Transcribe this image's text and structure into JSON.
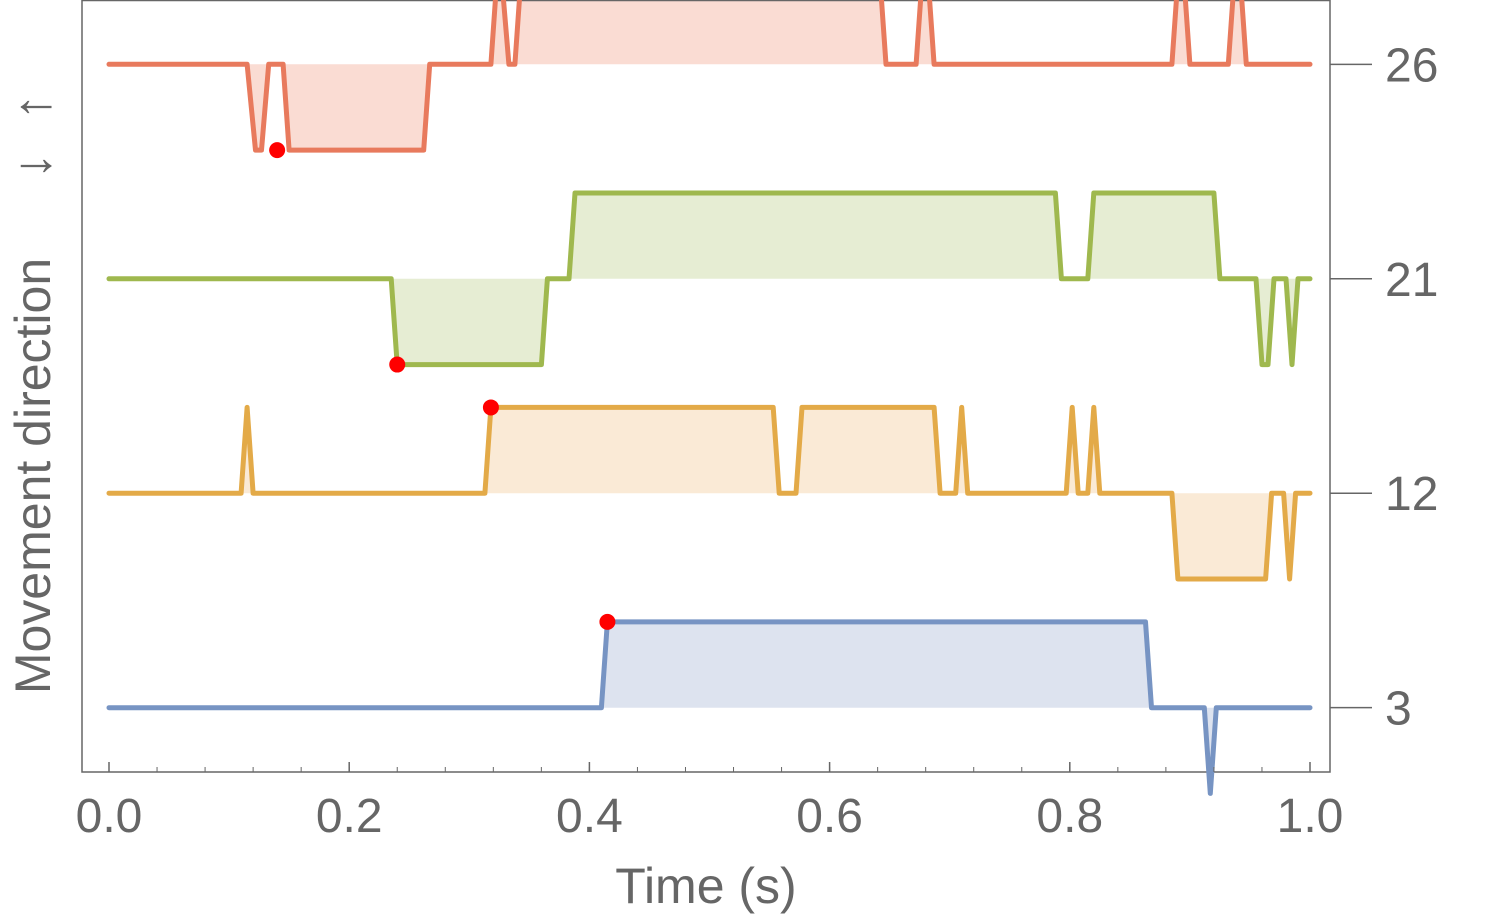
{
  "chart_data": {
    "type": "line",
    "xlabel": "Time (s)",
    "ylabel": "Movement direction",
    "direction_symbols": {
      "up": "↑",
      "down": "↓"
    },
    "xlim": [
      0.0,
      1.0
    ],
    "x_ticks": [
      {
        "value": 0.0,
        "label": "0.0"
      },
      {
        "value": 0.2,
        "label": "0.2"
      },
      {
        "value": 0.4,
        "label": "0.4"
      },
      {
        "value": 0.6,
        "label": "0.6"
      },
      {
        "value": 0.8,
        "label": "0.8"
      },
      {
        "value": 1.0,
        "label": "1.0"
      }
    ],
    "x_minor_step": 0.04,
    "ylim": [
      -1.5,
      16.5
    ],
    "grid": false,
    "shaded_between_trace_and_baseline": true,
    "series": [
      {
        "name": "26",
        "color": "#e87a5d",
        "fill": "#fadcd3",
        "offset": 15,
        "marker": {
          "x": 0.14,
          "y": 13
        },
        "points": [
          [
            0,
            15
          ],
          [
            0.115,
            15
          ],
          [
            0.122,
            13
          ],
          [
            0.127,
            13
          ],
          [
            0.133,
            15
          ],
          [
            0.145,
            15
          ],
          [
            0.15,
            13
          ],
          [
            0.262,
            13
          ],
          [
            0.267,
            15
          ],
          [
            0.318,
            15
          ],
          [
            0.323,
            17
          ],
          [
            0.327,
            17
          ],
          [
            0.333,
            15
          ],
          [
            0.338,
            15
          ],
          [
            0.343,
            17
          ],
          [
            0.642,
            17
          ],
          [
            0.647,
            15
          ],
          [
            0.672,
            15
          ],
          [
            0.677,
            17
          ],
          [
            0.682,
            17
          ],
          [
            0.687,
            15
          ],
          [
            0.885,
            15
          ],
          [
            0.89,
            17
          ],
          [
            0.895,
            17
          ],
          [
            0.9,
            15
          ],
          [
            0.932,
            15
          ],
          [
            0.937,
            17
          ],
          [
            0.942,
            17
          ],
          [
            0.947,
            15
          ],
          [
            1.0,
            15
          ]
        ]
      },
      {
        "name": "21",
        "color": "#9fb84e",
        "fill": "#e6edd3",
        "offset": 10,
        "marker": {
          "x": 0.24,
          "y": 8
        },
        "points": [
          [
            0,
            10
          ],
          [
            0.235,
            10
          ],
          [
            0.24,
            8
          ],
          [
            0.36,
            8
          ],
          [
            0.365,
            10
          ],
          [
            0.383,
            10
          ],
          [
            0.388,
            12
          ],
          [
            0.788,
            12
          ],
          [
            0.793,
            10
          ],
          [
            0.815,
            10
          ],
          [
            0.82,
            12
          ],
          [
            0.92,
            12
          ],
          [
            0.925,
            10
          ],
          [
            0.955,
            10
          ],
          [
            0.96,
            8
          ],
          [
            0.965,
            8
          ],
          [
            0.97,
            10
          ],
          [
            0.98,
            10
          ],
          [
            0.985,
            8
          ],
          [
            0.99,
            10
          ],
          [
            1.0,
            10
          ]
        ]
      },
      {
        "name": "12",
        "color": "#e3aa48",
        "fill": "#faead6",
        "offset": 5,
        "marker": {
          "x": 0.318,
          "y": 7
        },
        "points": [
          [
            0,
            5
          ],
          [
            0.11,
            5
          ],
          [
            0.115,
            7
          ],
          [
            0.12,
            5
          ],
          [
            0.313,
            5
          ],
          [
            0.318,
            7
          ],
          [
            0.553,
            7
          ],
          [
            0.558,
            5
          ],
          [
            0.572,
            5
          ],
          [
            0.577,
            7
          ],
          [
            0.687,
            7
          ],
          [
            0.692,
            5
          ],
          [
            0.705,
            5
          ],
          [
            0.71,
            7
          ],
          [
            0.715,
            5
          ],
          [
            0.797,
            5
          ],
          [
            0.802,
            7
          ],
          [
            0.807,
            5
          ],
          [
            0.815,
            5
          ],
          [
            0.82,
            7
          ],
          [
            0.825,
            5
          ],
          [
            0.885,
            5
          ],
          [
            0.89,
            3
          ],
          [
            0.963,
            3
          ],
          [
            0.968,
            5
          ],
          [
            0.978,
            5
          ],
          [
            0.983,
            3
          ],
          [
            0.988,
            5
          ],
          [
            1.0,
            5
          ]
        ]
      },
      {
        "name": "3",
        "color": "#7794c3",
        "fill": "#dde3ef",
        "offset": 0,
        "marker": {
          "x": 0.415,
          "y": 2
        },
        "points": [
          [
            0,
            0
          ],
          [
            0.41,
            0
          ],
          [
            0.415,
            2
          ],
          [
            0.863,
            2
          ],
          [
            0.868,
            0
          ],
          [
            0.912,
            0
          ],
          [
            0.917,
            -2
          ],
          [
            0.922,
            0
          ],
          [
            1.0,
            0
          ]
        ]
      }
    ]
  }
}
